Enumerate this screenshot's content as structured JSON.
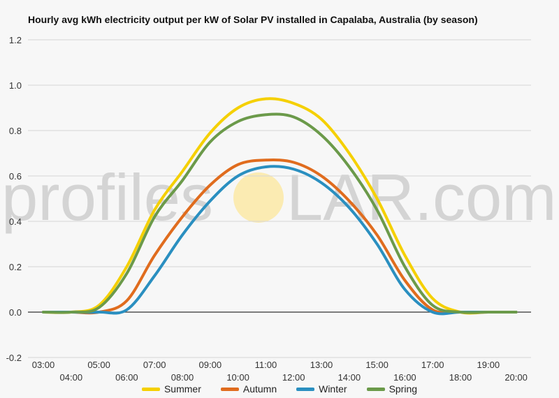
{
  "chart_data": {
    "type": "line",
    "title": "Hourly avg kWh electricity output per kW of Solar PV installed in Capalaba, Australia (by season)",
    "xlabel": "",
    "ylabel": "",
    "ylim": [
      -0.2,
      1.2
    ],
    "yticks": [
      "1.2",
      "1.0",
      "0.8",
      "0.6",
      "0.4",
      "0.2",
      "0.0",
      "-0.2"
    ],
    "categories": [
      "03:00",
      "04:00",
      "05:00",
      "06:00",
      "07:00",
      "08:00",
      "09:00",
      "10:00",
      "11:00",
      "12:00",
      "13:00",
      "14:00",
      "15:00",
      "16:00",
      "17:00",
      "18:00",
      "19:00",
      "20:00"
    ],
    "legend_position": "bottom",
    "grid": true,
    "series": [
      {
        "name": "Summer",
        "color": "#f5d000",
        "values": [
          0,
          0,
          0.03,
          0.2,
          0.45,
          0.62,
          0.79,
          0.9,
          0.94,
          0.92,
          0.85,
          0.7,
          0.5,
          0.25,
          0.06,
          0,
          0,
          0
        ]
      },
      {
        "name": "Autumn",
        "color": "#e06c1e",
        "values": [
          0,
          0,
          0,
          0.05,
          0.25,
          0.42,
          0.56,
          0.65,
          0.67,
          0.66,
          0.6,
          0.49,
          0.34,
          0.14,
          0.01,
          0,
          0,
          0
        ]
      },
      {
        "name": "Winter",
        "color": "#2a8fc0",
        "values": [
          0,
          0,
          0,
          0.01,
          0.16,
          0.34,
          0.49,
          0.6,
          0.64,
          0.63,
          0.57,
          0.46,
          0.3,
          0.1,
          0,
          0,
          0,
          0
        ]
      },
      {
        "name": "Spring",
        "color": "#6b9a4a",
        "values": [
          0,
          0,
          0.02,
          0.17,
          0.42,
          0.58,
          0.75,
          0.84,
          0.87,
          0.86,
          0.78,
          0.64,
          0.45,
          0.2,
          0.03,
          0,
          0,
          0
        ]
      }
    ]
  },
  "watermark": {
    "text_left": "profiles",
    "text_right": "LAR.com"
  }
}
